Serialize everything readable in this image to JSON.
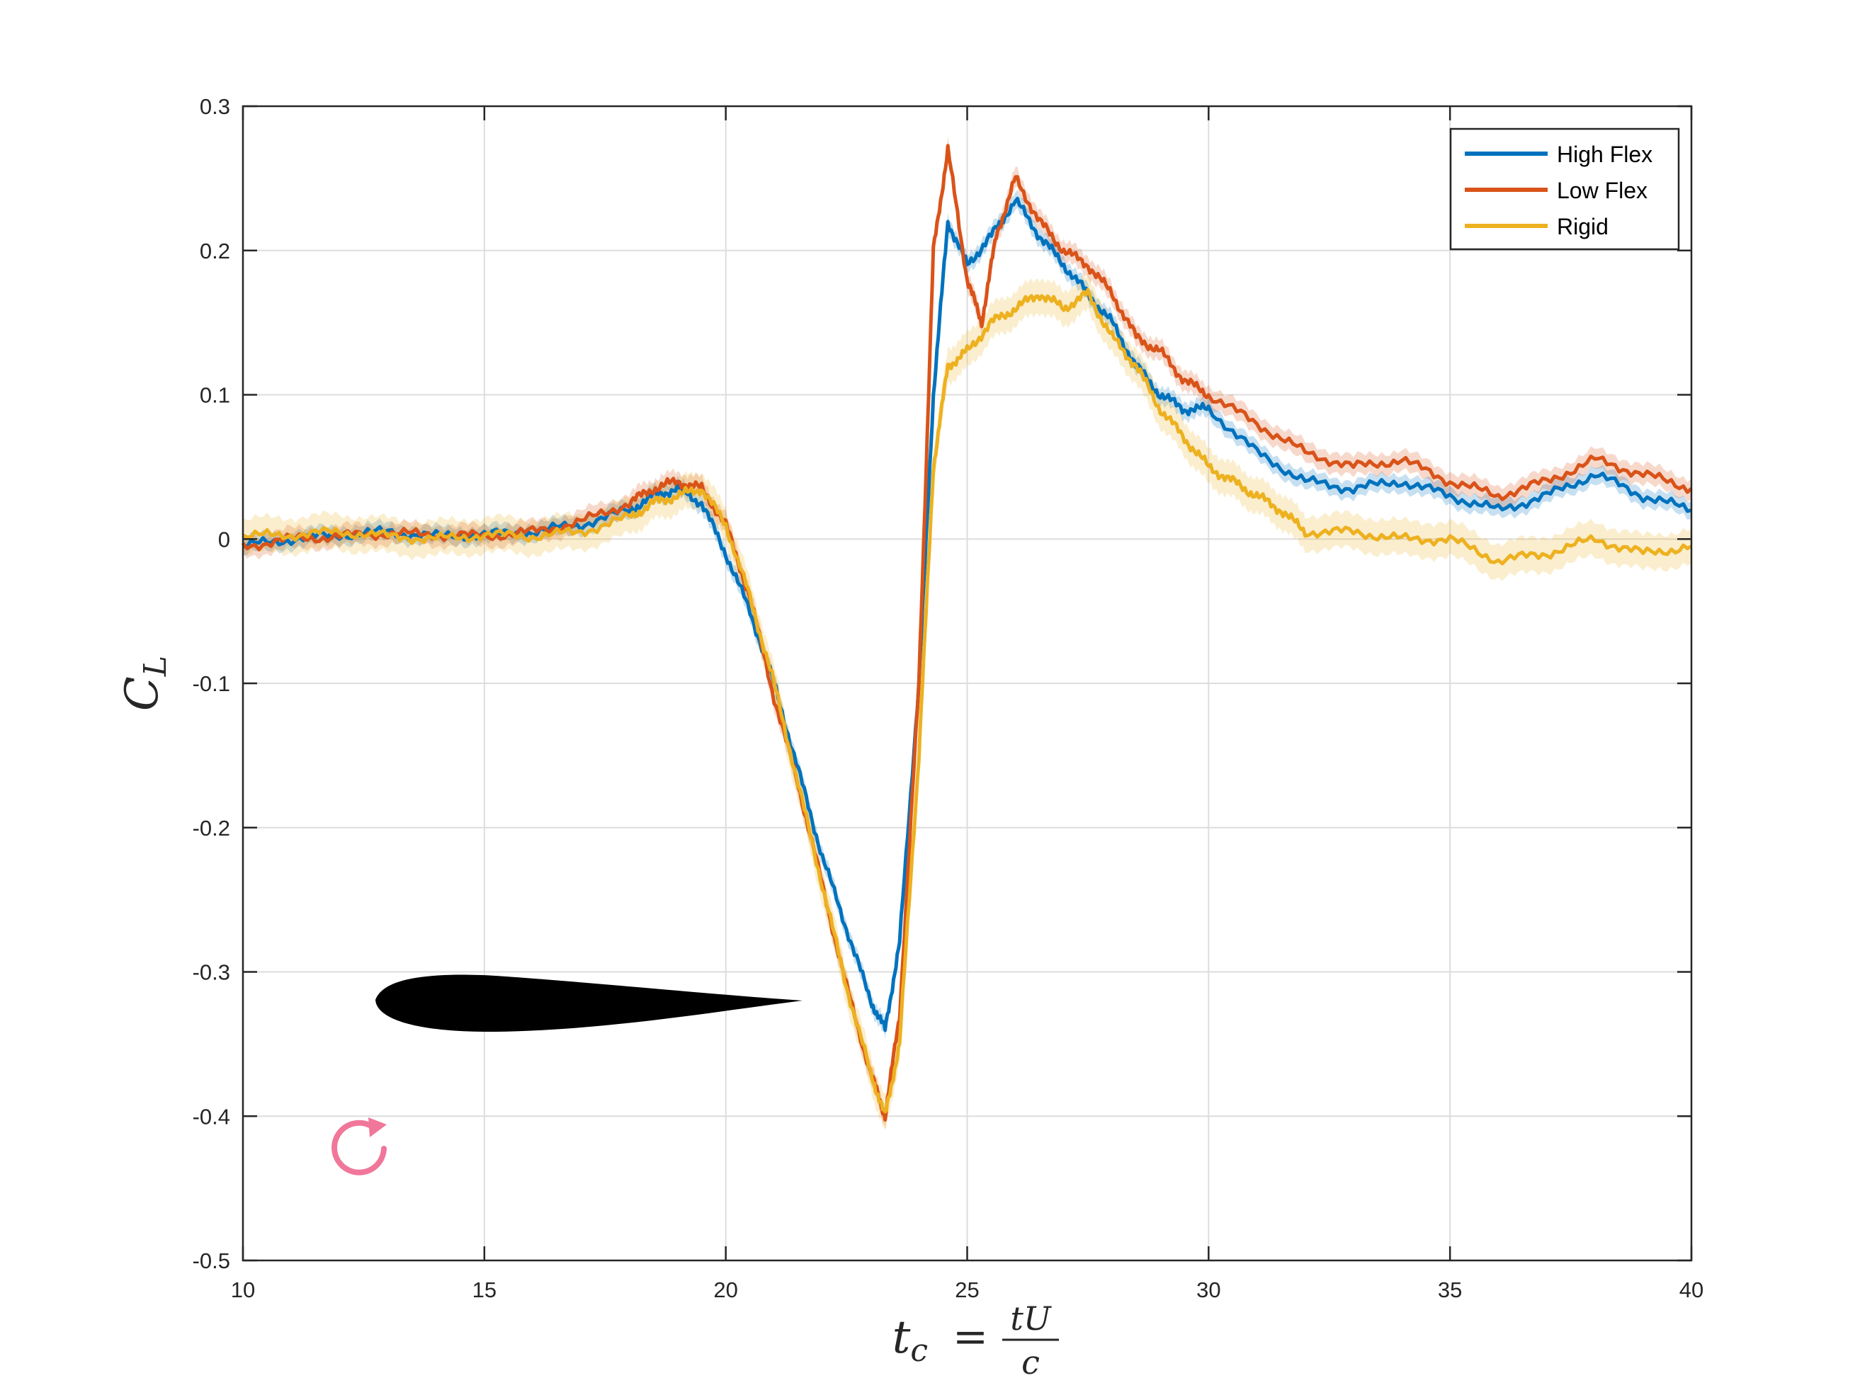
{
  "chart_data": {
    "type": "line",
    "xlabel": {
      "base": "t",
      "sub": "c",
      "num": "tU",
      "den": "c"
    },
    "ylabel": {
      "base": "C",
      "sub": "L"
    },
    "xlim": [
      10,
      40
    ],
    "ylim": [
      -0.5,
      0.3
    ],
    "xticks": [
      10,
      15,
      20,
      25,
      30,
      35,
      40
    ],
    "yticks": [
      -0.5,
      -0.4,
      -0.3,
      -0.2,
      -0.1,
      0,
      0.1,
      0.2,
      0.3
    ],
    "xtick_labels": [
      "10",
      "15",
      "20",
      "25",
      "30",
      "35",
      "40"
    ],
    "ytick_labels": [
      "-0.5",
      "-0.4",
      "-0.3",
      "-0.2",
      "-0.1",
      "0",
      "0.1",
      "0.2",
      "0.3"
    ],
    "grid": true,
    "legend_position": "top-right",
    "series": [
      {
        "name": "High Flex",
        "color": "#0072BD",
        "x": [
          10,
          11,
          12,
          13,
          14,
          15,
          16,
          17,
          18,
          18.5,
          19,
          19.5,
          20,
          20.5,
          21,
          21.5,
          22,
          22.5,
          23,
          23.3,
          23.6,
          24,
          24.3,
          24.6,
          25,
          25.5,
          26,
          26.5,
          27,
          27.5,
          28,
          28.5,
          29,
          29.5,
          30,
          31,
          32,
          33,
          34,
          35,
          36,
          37,
          38,
          39,
          40
        ],
        "y": [
          -0.005,
          0,
          0.003,
          0.005,
          0.002,
          0.003,
          0.005,
          0.01,
          0.02,
          0.03,
          0.035,
          0.025,
          -0.01,
          -0.05,
          -0.1,
          -0.16,
          -0.22,
          -0.27,
          -0.32,
          -0.34,
          -0.28,
          -0.1,
          0.1,
          0.22,
          0.19,
          0.21,
          0.235,
          0.21,
          0.19,
          0.17,
          0.15,
          0.12,
          0.1,
          0.09,
          0.09,
          0.06,
          0.04,
          0.035,
          0.04,
          0.03,
          0.02,
          0.03,
          0.045,
          0.03,
          0.02
        ],
        "band": 0.006
      },
      {
        "name": "Low Flex",
        "color": "#D95319",
        "x": [
          10,
          11,
          12,
          13,
          14,
          15,
          16,
          17,
          18,
          18.5,
          19,
          19.5,
          20,
          20.5,
          21,
          21.5,
          22,
          22.5,
          23,
          23.3,
          23.6,
          24,
          24.3,
          24.6,
          25,
          25.3,
          25.6,
          26,
          26.5,
          27,
          27.5,
          28,
          28.5,
          29,
          29.5,
          30,
          31,
          32,
          33,
          34,
          35,
          36,
          37,
          38,
          39,
          40
        ],
        "y": [
          -0.005,
          0,
          0.002,
          0.004,
          0.003,
          0.002,
          0.005,
          0.012,
          0.025,
          0.035,
          0.04,
          0.035,
          0.01,
          -0.04,
          -0.11,
          -0.17,
          -0.24,
          -0.31,
          -0.37,
          -0.4,
          -0.33,
          -0.1,
          0.2,
          0.27,
          0.18,
          0.15,
          0.21,
          0.25,
          0.22,
          0.2,
          0.19,
          0.17,
          0.14,
          0.13,
          0.11,
          0.1,
          0.08,
          0.06,
          0.05,
          0.055,
          0.04,
          0.03,
          0.04,
          0.055,
          0.045,
          0.035
        ],
        "band": 0.007
      },
      {
        "name": "Rigid",
        "color": "#EDB120",
        "x": [
          10,
          11,
          12,
          13,
          14,
          15,
          16,
          17,
          18,
          18.5,
          19,
          19.5,
          20,
          20.5,
          21,
          21.5,
          22,
          22.5,
          23,
          23.3,
          23.6,
          24,
          24.3,
          24.6,
          25,
          25.5,
          26,
          26.5,
          27,
          27.5,
          28,
          28.5,
          29,
          29.5,
          30,
          30.5,
          31,
          31.5,
          32,
          33,
          34,
          35,
          36,
          37,
          38,
          39,
          40
        ],
        "y": [
          0.002,
          0.003,
          0.005,
          0.002,
          0,
          0.003,
          0.002,
          0.005,
          0.015,
          0.025,
          0.03,
          0.035,
          0.01,
          -0.04,
          -0.1,
          -0.17,
          -0.24,
          -0.31,
          -0.37,
          -0.4,
          -0.35,
          -0.15,
          0.05,
          0.12,
          0.13,
          0.15,
          0.16,
          0.17,
          0.16,
          0.17,
          0.14,
          0.12,
          0.09,
          0.07,
          0.05,
          0.04,
          0.03,
          0.02,
          0.005,
          0.005,
          0.0,
          0.0,
          -0.015,
          -0.01,
          0.0,
          -0.01,
          -0.005
        ],
        "band": 0.012
      }
    ],
    "annotations": [
      {
        "type": "airfoil-silhouette",
        "color": "#000000"
      },
      {
        "type": "rotation-arrow",
        "color": "#F0779A"
      }
    ]
  },
  "colors": {
    "axis": "#262626",
    "grid": "#DDDDDD",
    "background": "#FFFFFF"
  }
}
